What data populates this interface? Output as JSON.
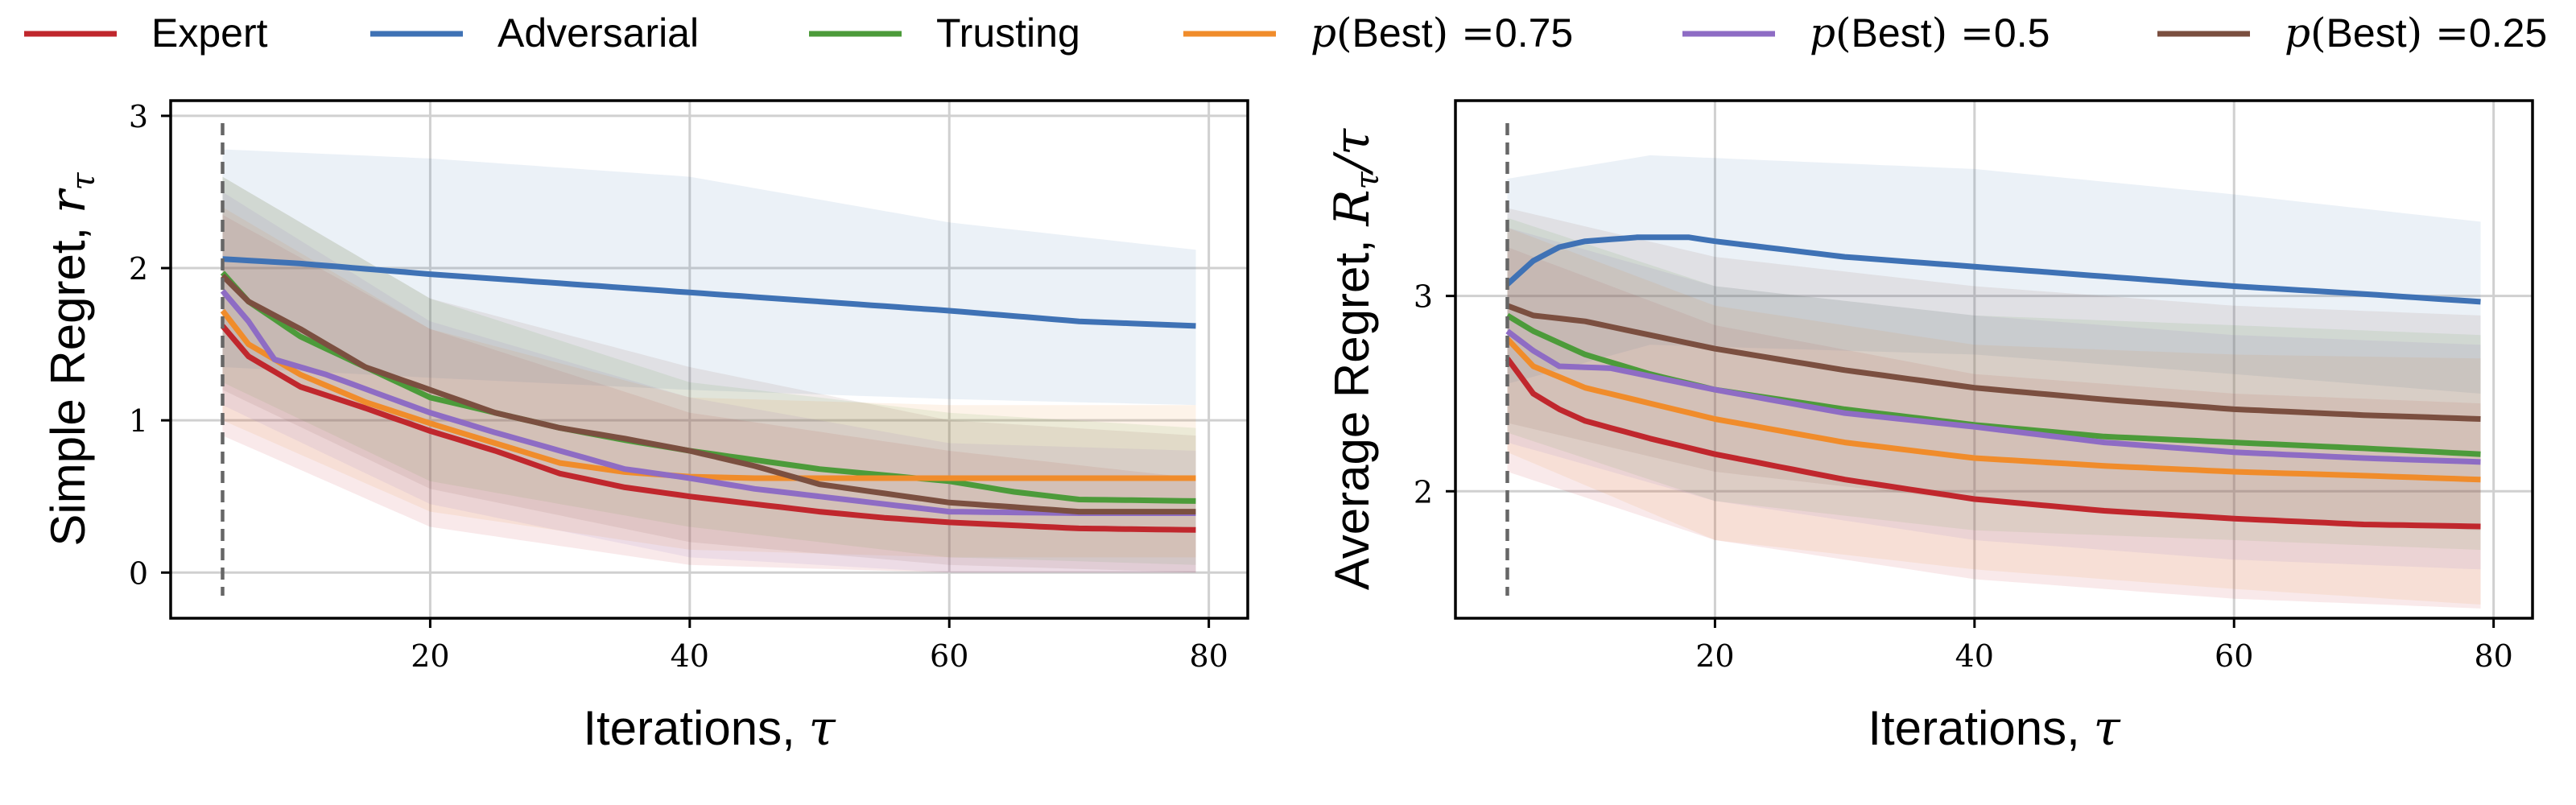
{
  "chart_data": [
    {
      "type": "line",
      "ylabel": "Simple Regret, r",
      "ylabel_sub": "τ",
      "xlabel": "Iterations, τ",
      "xlim": [
        0,
        83
      ],
      "ylim": [
        -0.3,
        3.1
      ],
      "xticks": [
        20,
        40,
        60,
        80
      ],
      "yticks": [
        0,
        1,
        2,
        3
      ],
      "grid": true,
      "vline_x": 4,
      "series": [
        {
          "name": "Expert",
          "color": "#c0272d",
          "points": [
            [
              4,
              1.62
            ],
            [
              6,
              1.42
            ],
            [
              10,
              1.22
            ],
            [
              15,
              1.08
            ],
            [
              20,
              0.93
            ],
            [
              25,
              0.8
            ],
            [
              30,
              0.65
            ],
            [
              35,
              0.56
            ],
            [
              40,
              0.5
            ],
            [
              45,
              0.45
            ],
            [
              50,
              0.4
            ],
            [
              55,
              0.36
            ],
            [
              60,
              0.33
            ],
            [
              65,
              0.31
            ],
            [
              70,
              0.29
            ],
            [
              79,
              0.28
            ]
          ],
          "band": [
            [
              4,
              0.9,
              2.35
            ],
            [
              20,
              0.3,
              1.6
            ],
            [
              40,
              0.05,
              1.05
            ],
            [
              60,
              0.0,
              0.8
            ],
            [
              79,
              0.0,
              0.62
            ]
          ]
        },
        {
          "name": "Adversarial",
          "color": "#3f72b5",
          "points": [
            [
              4,
              2.06
            ],
            [
              10,
              2.03
            ],
            [
              20,
              1.96
            ],
            [
              30,
              1.9
            ],
            [
              40,
              1.84
            ],
            [
              50,
              1.78
            ],
            [
              60,
              1.72
            ],
            [
              70,
              1.65
            ],
            [
              79,
              1.62
            ]
          ],
          "band": [
            [
              4,
              1.35,
              2.78
            ],
            [
              20,
              1.28,
              2.72
            ],
            [
              40,
              1.2,
              2.6
            ],
            [
              60,
              1.14,
              2.3
            ],
            [
              79,
              1.1,
              2.12
            ]
          ]
        },
        {
          "name": "Trusting",
          "color": "#4c9b3a",
          "points": [
            [
              4,
              1.97
            ],
            [
              6,
              1.78
            ],
            [
              10,
              1.55
            ],
            [
              15,
              1.35
            ],
            [
              20,
              1.15
            ],
            [
              25,
              1.05
            ],
            [
              30,
              0.95
            ],
            [
              35,
              0.87
            ],
            [
              40,
              0.8
            ],
            [
              45,
              0.74
            ],
            [
              50,
              0.68
            ],
            [
              55,
              0.64
            ],
            [
              60,
              0.6
            ],
            [
              65,
              0.53
            ],
            [
              70,
              0.48
            ],
            [
              79,
              0.47
            ]
          ],
          "band": [
            [
              4,
              1.25,
              2.6
            ],
            [
              20,
              0.6,
              1.8
            ],
            [
              40,
              0.3,
              1.25
            ],
            [
              60,
              0.1,
              1.05
            ],
            [
              79,
              0.05,
              0.95
            ]
          ]
        },
        {
          "name": "p(Best) =0.75",
          "color": "#f08c2b",
          "points": [
            [
              4,
              1.72
            ],
            [
              6,
              1.5
            ],
            [
              10,
              1.3
            ],
            [
              15,
              1.12
            ],
            [
              20,
              0.98
            ],
            [
              25,
              0.85
            ],
            [
              30,
              0.72
            ],
            [
              35,
              0.66
            ],
            [
              40,
              0.63
            ],
            [
              45,
              0.62
            ],
            [
              50,
              0.62
            ],
            [
              60,
              0.62
            ],
            [
              70,
              0.62
            ],
            [
              79,
              0.62
            ]
          ],
          "band": [
            [
              4,
              1.0,
              2.4
            ],
            [
              20,
              0.4,
              1.6
            ],
            [
              40,
              0.15,
              1.15
            ],
            [
              60,
              0.1,
              1.1
            ],
            [
              79,
              0.1,
              1.1
            ]
          ]
        },
        {
          "name": "p(Best) =0.5",
          "color": "#8e6cc4",
          "points": [
            [
              4,
              1.85
            ],
            [
              6,
              1.65
            ],
            [
              8,
              1.4
            ],
            [
              12,
              1.3
            ],
            [
              20,
              1.05
            ],
            [
              25,
              0.92
            ],
            [
              30,
              0.8
            ],
            [
              35,
              0.68
            ],
            [
              40,
              0.62
            ],
            [
              45,
              0.55
            ],
            [
              50,
              0.5
            ],
            [
              55,
              0.45
            ],
            [
              60,
              0.4
            ],
            [
              70,
              0.39
            ],
            [
              79,
              0.39
            ]
          ],
          "band": [
            [
              4,
              1.1,
              2.5
            ],
            [
              20,
              0.45,
              1.65
            ],
            [
              40,
              0.1,
              1.15
            ],
            [
              60,
              0.0,
              0.85
            ],
            [
              79,
              0.0,
              0.8
            ]
          ]
        },
        {
          "name": "p(Best) =0.25",
          "color": "#7b4f40",
          "points": [
            [
              4,
              1.95
            ],
            [
              6,
              1.78
            ],
            [
              10,
              1.6
            ],
            [
              15,
              1.35
            ],
            [
              20,
              1.2
            ],
            [
              25,
              1.05
            ],
            [
              30,
              0.95
            ],
            [
              35,
              0.88
            ],
            [
              40,
              0.8
            ],
            [
              45,
              0.7
            ],
            [
              50,
              0.58
            ],
            [
              55,
              0.52
            ],
            [
              60,
              0.46
            ],
            [
              65,
              0.43
            ],
            [
              70,
              0.4
            ],
            [
              79,
              0.4
            ]
          ],
          "band": [
            [
              4,
              1.2,
              2.6
            ],
            [
              20,
              0.55,
              1.8
            ],
            [
              40,
              0.2,
              1.35
            ],
            [
              60,
              0.05,
              1.0
            ],
            [
              79,
              0.0,
              0.9
            ]
          ]
        }
      ]
    },
    {
      "type": "line",
      "ylabel": "Average Regret, R",
      "ylabel_sub": "τ",
      "ylabel_suffix": "/τ",
      "xlabel": "Iterations, τ",
      "xlim": [
        0,
        83
      ],
      "ylim": [
        1.35,
        4.0
      ],
      "xticks": [
        20,
        40,
        60,
        80
      ],
      "yticks": [
        2,
        3
      ],
      "grid": true,
      "vline_x": 4,
      "series": [
        {
          "name": "Expert",
          "color": "#c0272d",
          "points": [
            [
              4,
              2.68
            ],
            [
              6,
              2.5
            ],
            [
              8,
              2.42
            ],
            [
              10,
              2.36
            ],
            [
              15,
              2.27
            ],
            [
              20,
              2.19
            ],
            [
              30,
              2.06
            ],
            [
              40,
              1.96
            ],
            [
              50,
              1.9
            ],
            [
              60,
              1.86
            ],
            [
              70,
              1.83
            ],
            [
              79,
              1.82
            ]
          ],
          "band": [
            [
              4,
              2.1,
              3.25
            ],
            [
              20,
              1.75,
              2.85
            ],
            [
              40,
              1.55,
              2.6
            ],
            [
              60,
              1.45,
              2.5
            ],
            [
              79,
              1.4,
              2.45
            ]
          ]
        },
        {
          "name": "Adversarial",
          "color": "#3f72b5",
          "points": [
            [
              4,
              3.06
            ],
            [
              6,
              3.18
            ],
            [
              8,
              3.25
            ],
            [
              10,
              3.28
            ],
            [
              14,
              3.3
            ],
            [
              18,
              3.3
            ],
            [
              20,
              3.28
            ],
            [
              30,
              3.2
            ],
            [
              40,
              3.15
            ],
            [
              50,
              3.1
            ],
            [
              60,
              3.05
            ],
            [
              70,
              3.01
            ],
            [
              79,
              2.97
            ]
          ],
          "band": [
            [
              4,
              2.55,
              3.6
            ],
            [
              15,
              2.75,
              3.72
            ],
            [
              40,
              2.7,
              3.65
            ],
            [
              60,
              2.6,
              3.52
            ],
            [
              79,
              2.5,
              3.38
            ]
          ]
        },
        {
          "name": "Trusting",
          "color": "#4c9b3a",
          "points": [
            [
              4,
              2.9
            ],
            [
              6,
              2.82
            ],
            [
              10,
              2.7
            ],
            [
              15,
              2.6
            ],
            [
              20,
              2.52
            ],
            [
              30,
              2.42
            ],
            [
              40,
              2.34
            ],
            [
              50,
              2.28
            ],
            [
              60,
              2.25
            ],
            [
              70,
              2.22
            ],
            [
              79,
              2.19
            ]
          ],
          "band": [
            [
              4,
              2.3,
              3.4
            ],
            [
              20,
              1.95,
              3.05
            ],
            [
              40,
              1.8,
              2.9
            ],
            [
              60,
              1.75,
              2.85
            ],
            [
              79,
              1.7,
              2.8
            ]
          ]
        },
        {
          "name": "p(Best) =0.75",
          "color": "#f08c2b",
          "points": [
            [
              4,
              2.78
            ],
            [
              6,
              2.64
            ],
            [
              10,
              2.53
            ],
            [
              15,
              2.45
            ],
            [
              20,
              2.37
            ],
            [
              30,
              2.25
            ],
            [
              40,
              2.17
            ],
            [
              50,
              2.13
            ],
            [
              60,
              2.1
            ],
            [
              70,
              2.08
            ],
            [
              79,
              2.06
            ]
          ],
          "band": [
            [
              4,
              2.2,
              3.35
            ],
            [
              20,
              1.75,
              2.95
            ],
            [
              40,
              1.6,
              2.75
            ],
            [
              60,
              1.5,
              2.7
            ],
            [
              79,
              1.42,
              2.68
            ]
          ]
        },
        {
          "name": "p(Best) =0.5",
          "color": "#8e6cc4",
          "points": [
            [
              4,
              2.82
            ],
            [
              6,
              2.72
            ],
            [
              8,
              2.64
            ],
            [
              12,
              2.63
            ],
            [
              20,
              2.52
            ],
            [
              30,
              2.4
            ],
            [
              40,
              2.33
            ],
            [
              50,
              2.25
            ],
            [
              60,
              2.2
            ],
            [
              70,
              2.17
            ],
            [
              79,
              2.15
            ]
          ],
          "band": [
            [
              4,
              2.25,
              3.35
            ],
            [
              20,
              1.95,
              3.05
            ],
            [
              40,
              1.75,
              2.9
            ],
            [
              60,
              1.65,
              2.8
            ],
            [
              79,
              1.6,
              2.75
            ]
          ]
        },
        {
          "name": "p(Best) =0.25",
          "color": "#7b4f40",
          "points": [
            [
              4,
              2.95
            ],
            [
              6,
              2.9
            ],
            [
              10,
              2.87
            ],
            [
              15,
              2.8
            ],
            [
              20,
              2.73
            ],
            [
              30,
              2.62
            ],
            [
              40,
              2.53
            ],
            [
              50,
              2.47
            ],
            [
              60,
              2.42
            ],
            [
              70,
              2.39
            ],
            [
              79,
              2.37
            ]
          ],
          "band": [
            [
              4,
              2.35,
              3.45
            ],
            [
              20,
              2.1,
              3.2
            ],
            [
              40,
              1.95,
              3.05
            ],
            [
              60,
              1.85,
              2.95
            ],
            [
              79,
              1.8,
              2.9
            ]
          ]
        }
      ]
    }
  ]
}
